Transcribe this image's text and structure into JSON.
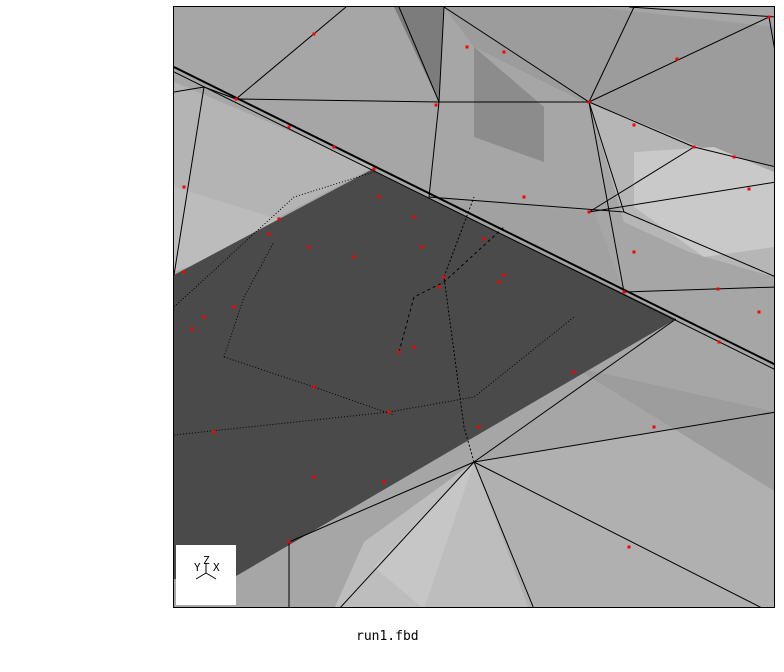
{
  "viewport": {
    "colors": {
      "background": "#ffffff",
      "mesh_light": "#cfcfcf",
      "mesh_mid": "#a6a6a6",
      "mesh_dark": "#8c8c8c",
      "selected_region": "#4a4a4a",
      "edge": "#000000",
      "node": "#ff0000"
    }
  },
  "axis_triad": {
    "y_label": "Y",
    "z_label": "Z",
    "x_label": "X",
    "icon": "axis-triad-icon"
  },
  "status": {
    "filename": "run1.fbd"
  }
}
